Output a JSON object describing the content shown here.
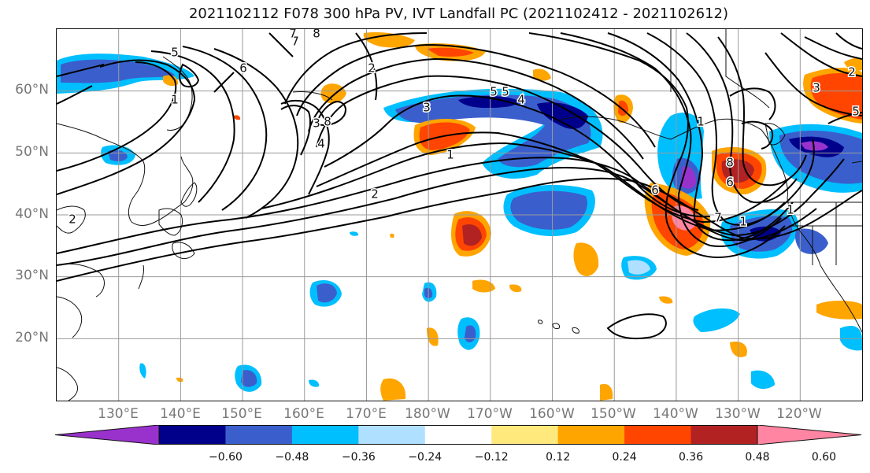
{
  "title": "2021102112 F078 300 hPa PV, IVT Landfall PC (2021102412 - 2021102612)",
  "map": {
    "lat_labels": [
      "60°N",
      "50°N",
      "40°N",
      "30°N",
      "20°N"
    ],
    "lon_labels": [
      "130°E",
      "140°E",
      "150°E",
      "160°E",
      "170°E",
      "180°W",
      "170°W",
      "160°W",
      "150°W",
      "140°W",
      "130°W",
      "120°W"
    ],
    "lat_values": [
      60,
      50,
      40,
      30,
      20
    ],
    "lon_values": [
      130,
      140,
      150,
      160,
      170,
      180,
      190,
      200,
      210,
      220,
      230,
      240
    ],
    "lon_range": [
      120,
      250
    ],
    "lat_range": [
      10,
      70
    ],
    "gridlines": true,
    "pv_contour_labels": [
      "5",
      "8",
      "7",
      "6",
      "1",
      "2",
      "3",
      "4",
      "5",
      "8",
      "3",
      "2",
      "1",
      "5",
      "4",
      "6",
      "7",
      "1",
      "8",
      "6",
      "1",
      "2",
      "3",
      "1",
      "5",
      "2",
      "7"
    ]
  },
  "colorbar": {
    "tick_labels": [
      "−0.60",
      "−0.48",
      "−0.36",
      "−0.24",
      "−0.12",
      "0.12",
      "0.24",
      "0.36",
      "0.48",
      "0.60"
    ],
    "levels": [
      -0.6,
      -0.48,
      -0.36,
      -0.24,
      -0.12,
      0.12,
      0.24,
      0.36,
      0.48,
      0.6
    ],
    "colors": [
      "#9932cc",
      "#00008b",
      "#3a5fcd",
      "#00bfff",
      "#b0e0ff",
      "#ffffff",
      "#ffe87c",
      "#ffa500",
      "#ff4500",
      "#b22222",
      "#ff85a2"
    ],
    "extend": "both"
  }
}
